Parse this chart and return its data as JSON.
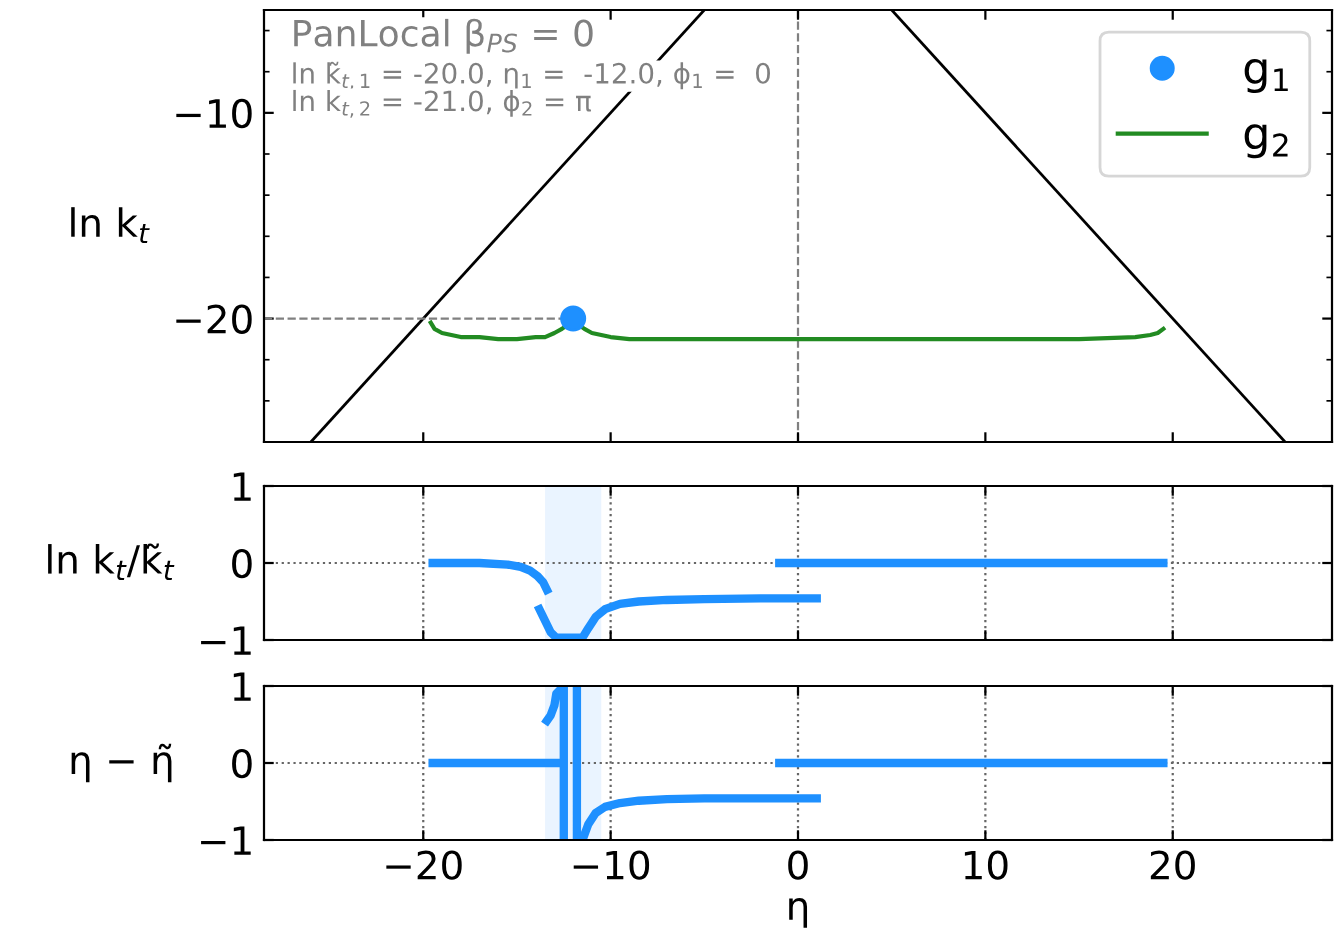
{
  "chart_data": [
    {
      "type": "line",
      "ylabel": "ln k$_{t}$",
      "xlim": [
        -28.5,
        28.5
      ],
      "ylim": [
        -26,
        -5
      ],
      "xticks": [
        -20,
        -10,
        0,
        10,
        20
      ],
      "yticks": [
        -10,
        -20
      ],
      "tick_labels": "y",
      "grid": false,
      "legend": "top right",
      "annotations": [
        "PanLocal β$_{PS}$ = 0",
        "ln k̃$_{t,1}$ = -20.0, η$_{1}$ =  -12.0, ϕ$_{1}$ =  0",
        "ln k$_{t,2}$ = -21.0, ϕ$_{2}$ = π"
      ],
      "ref_lines": [
        {
          "axis": "x",
          "value": 0,
          "label": null,
          "color": "#808080",
          "line_style": "dashed"
        }
      ],
      "series": [
        {
          "color": "#000000",
          "x": [
            -26,
            -5
          ],
          "values": [
            -26,
            -5
          ]
        },
        {
          "color": "#000000",
          "x": [
            5,
            26
          ],
          "values": [
            -5,
            -26
          ]
        },
        {
          "color": "#808080",
          "line_style": "dashed",
          "x": [
            -28.5,
            -12
          ],
          "values": [
            -20,
            -20
          ]
        },
        {
          "name": "g$_{2}$",
          "color": "#228b22",
          "x": [
            -19.6,
            -19.4,
            -19,
            -18.5,
            -18,
            -17,
            -16,
            -15,
            -14,
            -13.5,
            -13,
            -12.6,
            -12.3,
            -12,
            -11.7,
            -11.4,
            -11,
            -10.5,
            -10,
            -9,
            -8,
            -6,
            -4,
            0,
            5,
            10,
            15,
            18,
            18.8,
            19.2,
            19.5
          ],
          "values": [
            -20.2,
            -20.5,
            -20.7,
            -20.8,
            -20.9,
            -20.9,
            -21,
            -21,
            -20.9,
            -20.9,
            -20.7,
            -20.5,
            -20.3,
            -20,
            -20.3,
            -20.5,
            -20.7,
            -20.8,
            -20.9,
            -21,
            -21,
            -21,
            -21,
            -21,
            -21,
            -21,
            -21,
            -20.9,
            -20.8,
            -20.7,
            -20.5
          ]
        },
        {
          "name": "g$_{1}$",
          "type": "scatter",
          "marker": "circle",
          "color": "#1e90ff",
          "x": [
            -12
          ],
          "values": [
            -20
          ]
        }
      ]
    },
    {
      "type": "line",
      "ylabel": "ln k$_{t}$/k̃$_{t}$",
      "xlim": [
        -28.5,
        28.5
      ],
      "ylim": [
        -1,
        1
      ],
      "xticks": [
        -20,
        -10,
        0,
        10,
        20
      ],
      "yticks": [
        -1,
        0,
        1
      ],
      "tick_labels": "y",
      "grid": true,
      "bands": [
        {
          "axis": "x",
          "from": -13.5,
          "to": -10.5,
          "label": null,
          "color": "#eaf4ff"
        }
      ],
      "series": [
        {
          "color": "#1e90ff",
          "x": [
            -19.5,
            -17,
            -15.5,
            -14.8,
            -14.3,
            -13.9,
            -13.6,
            -13.4
          ],
          "values": [
            0,
            0,
            -0.02,
            -0.05,
            -0.1,
            -0.17,
            -0.25,
            -0.35
          ]
        },
        {
          "color": "#1e90ff",
          "x": [
            -13.8,
            -13.5,
            -13.2,
            -12.9,
            -12.6,
            -12.3,
            -11.9,
            -11.5,
            -11.2,
            -10.8,
            -10.3,
            -9.5,
            -8.5,
            -7,
            -5,
            -2,
            1
          ],
          "values": [
            -0.6,
            -0.75,
            -0.9,
            -0.97,
            -0.97,
            -0.97,
            -0.97,
            -0.97,
            -0.85,
            -0.7,
            -0.6,
            -0.53,
            -0.5,
            -0.48,
            -0.47,
            -0.46,
            -0.46
          ]
        },
        {
          "color": "#1e90ff",
          "x": [
            -1,
            19.5
          ],
          "values": [
            0,
            0
          ]
        }
      ]
    },
    {
      "type": "line",
      "ylabel": "η − η̃",
      "xlabel": "η",
      "xlim": [
        -28.5,
        28.5
      ],
      "ylim": [
        -1,
        1
      ],
      "xticks": [
        -20,
        -10,
        0,
        10,
        20
      ],
      "yticks": [
        -1,
        0,
        1
      ],
      "grid": true,
      "bands": [
        {
          "axis": "x",
          "from": -13.5,
          "to": -10.5,
          "label": null,
          "color": "#eaf4ff"
        }
      ],
      "series": [
        {
          "color": "#1e90ff",
          "x": [
            -13.4,
            -13.2,
            -13,
            -12.9,
            -12.5,
            -12.5,
            -12.5,
            -19.5
          ],
          "values": [
            0.55,
            0.62,
            0.75,
            0.9,
            1,
            -1,
            0,
            0
          ]
        },
        {
          "color": "#1e90ff",
          "x": [
            -11.8,
            -11.8,
            -11.5,
            -11.2,
            -10.8,
            -10.3,
            -9.5,
            -8.5,
            -7,
            -5,
            -2,
            1
          ],
          "values": [
            1,
            -1,
            -1,
            -0.8,
            -0.65,
            -0.57,
            -0.52,
            -0.49,
            -0.47,
            -0.46,
            -0.46,
            -0.46
          ]
        },
        {
          "color": "#1e90ff",
          "x": [
            -1,
            19.5
          ],
          "values": [
            0,
            0
          ]
        }
      ]
    }
  ]
}
